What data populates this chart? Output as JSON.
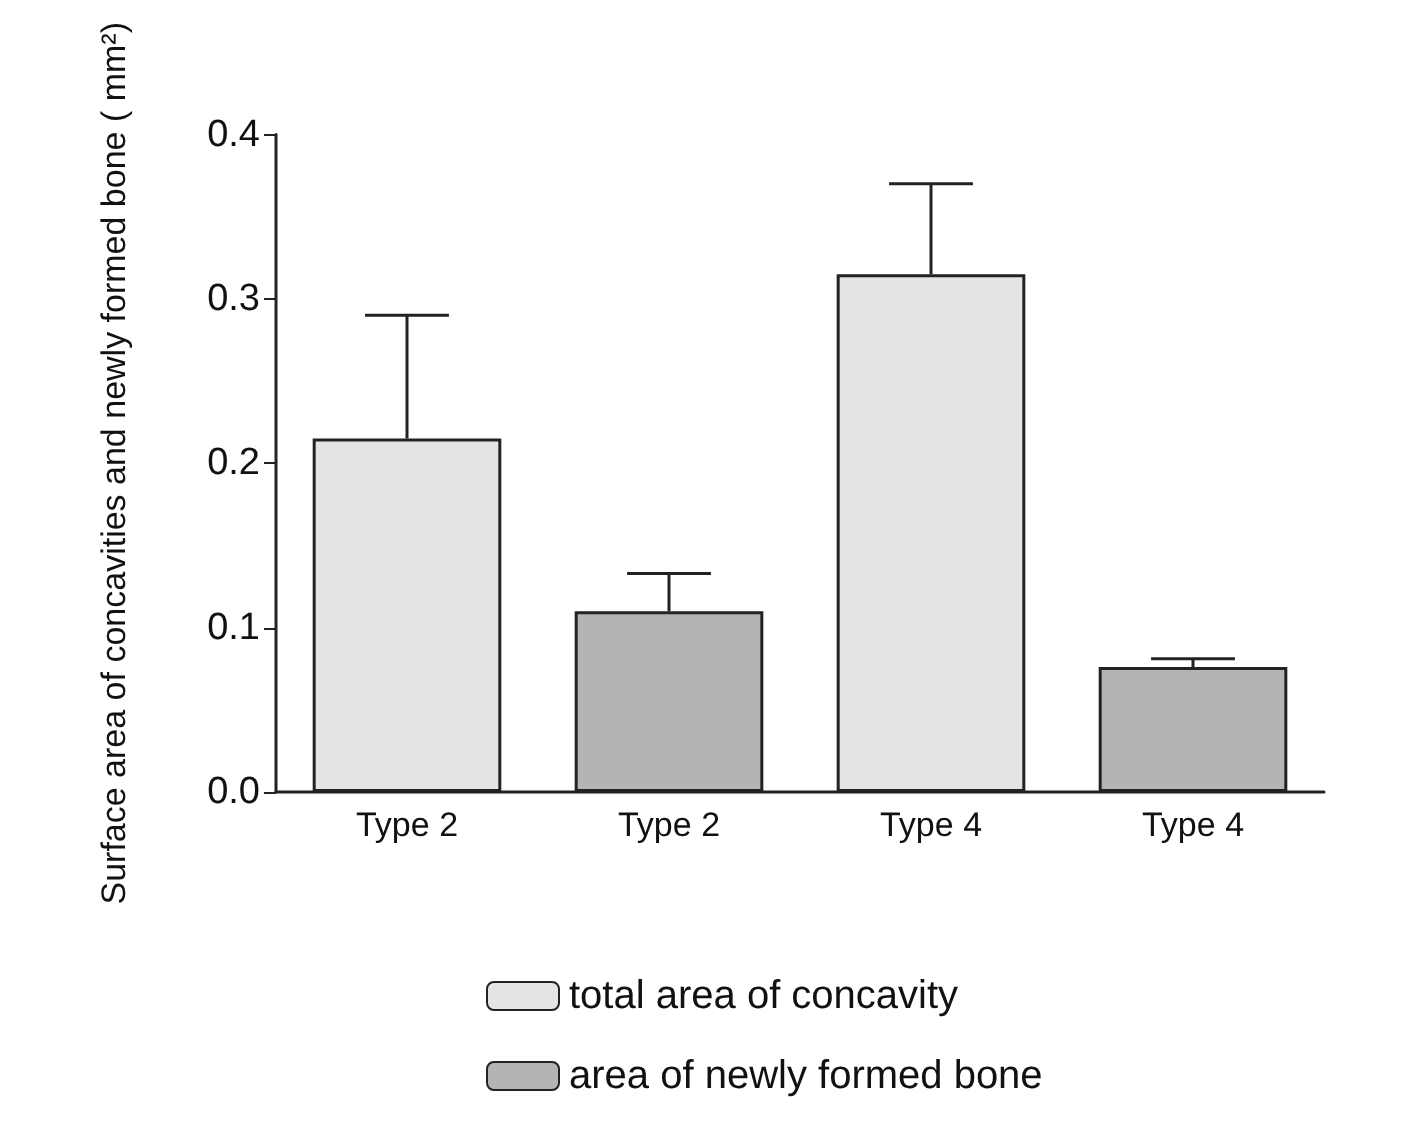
{
  "chart_data": {
    "type": "bar",
    "ylabel": "Surface area of concavities and newly formed bone ( mm²)",
    "categories": [
      "Type 2",
      "Type 2",
      "Type 4",
      "Type 4"
    ],
    "series": [
      {
        "name": "total area of concavity",
        "color": "#e4e4e4",
        "values": [
          0.215,
          null,
          0.315,
          null
        ],
        "errors": [
          [
            0.215,
            0.29
          ],
          null,
          [
            0.315,
            0.37
          ],
          null
        ]
      },
      {
        "name": "area of newly formed bone",
        "color": "#b4b4b4",
        "values": [
          null,
          0.11,
          null,
          0.076
        ],
        "errors": [
          null,
          [
            0.11,
            0.133
          ],
          null,
          [
            0.076,
            0.081
          ]
        ]
      }
    ],
    "ylim": [
      0,
      0.4
    ],
    "yticks": [
      {
        "value": 0,
        "label": "0.0"
      },
      {
        "value": 0.1,
        "label": "0.1"
      },
      {
        "value": 0.2,
        "label": "0.2"
      },
      {
        "value": 0.3,
        "label": "0.3"
      },
      {
        "value": 0.4,
        "label": "0.4"
      }
    ],
    "grid": false,
    "legend": "bottom"
  }
}
